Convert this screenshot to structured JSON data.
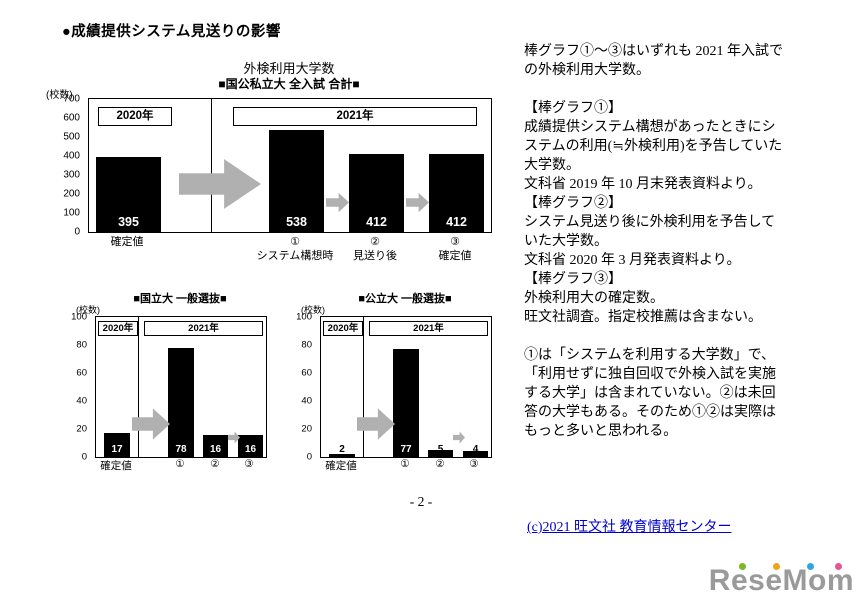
{
  "page": {
    "heading": "●成績提供システム見送りの影響",
    "page_number": "- 2 -",
    "copyright": "(c)2021 旺文社 教育情報センター",
    "logo_text": "ReseMom"
  },
  "colors": {
    "bar": "#000000",
    "arrow": "#b0b0b0",
    "link": "#0000cc",
    "logo_gray": "#9a9a9a",
    "logo_dots": [
      "#7cb829",
      "#f5a21b",
      "#29a8e0",
      "#e85298"
    ]
  },
  "chart_data": [
    {
      "type": "bar",
      "title": "外検利用大学数",
      "subtitle": "■国公私立大 全入試 合計■",
      "unit_label": "(校数)",
      "ylim": [
        0,
        700
      ],
      "yticks": [
        0,
        100,
        200,
        300,
        400,
        500,
        600,
        700
      ],
      "grid": false,
      "legend_position": "none",
      "group_labels": [
        "2020年",
        "2021年"
      ],
      "categories": [
        [
          "確定値"
        ],
        [
          "①",
          "システム構想時"
        ],
        [
          "②",
          "見送り後"
        ],
        [
          "③",
          "確定値"
        ]
      ],
      "values": [
        395,
        538,
        412,
        412
      ]
    },
    {
      "type": "bar",
      "title": "■国立大 一般選抜■",
      "unit_label": "(校数)",
      "ylim": [
        0,
        100
      ],
      "yticks": [
        0,
        20,
        40,
        60,
        80,
        100
      ],
      "grid": false,
      "legend_position": "none",
      "group_labels": [
        "2020年",
        "2021年"
      ],
      "categories": [
        "確定値",
        "①",
        "②",
        "③"
      ],
      "values": [
        17,
        78,
        16,
        16
      ]
    },
    {
      "type": "bar",
      "title": "■公立大 一般選抜■",
      "unit_label": "(校数)",
      "ylim": [
        0,
        100
      ],
      "yticks": [
        0,
        20,
        40,
        60,
        80,
        100
      ],
      "grid": false,
      "legend_position": "none",
      "group_labels": [
        "2020年",
        "2021年"
      ],
      "categories": [
        "確定値",
        "①",
        "②",
        "③"
      ],
      "values": [
        2,
        77,
        5,
        4
      ]
    }
  ],
  "notes": {
    "intro": "棒グラフ①～③はいずれも 2021 年入試での外検利用大学数。",
    "sections": [
      {
        "heading": "【棒グラフ①】",
        "body": "成績提供システム構想があったときにシステムの利用(≒外検利用)を予告していた大学数。",
        "source": "文科省 2019 年 10 月末発表資料より。"
      },
      {
        "heading": "【棒グラフ②】",
        "body": "システム見送り後に外検利用を予告していた大学数。",
        "source": "文科省 2020 年 3 月発表資料より。"
      },
      {
        "heading": "【棒グラフ③】",
        "body": "外検利用大の確定数。",
        "source": "旺文社調査。指定校推薦は含まない。"
      }
    ],
    "footnote": "①は「システムを利用する大学数」で、「利用せずに独自回収で外検入試を実施する大学」は含まれていない。②は未回答の大学もある。そのため①②は実際はもっと多いと思われる。"
  }
}
